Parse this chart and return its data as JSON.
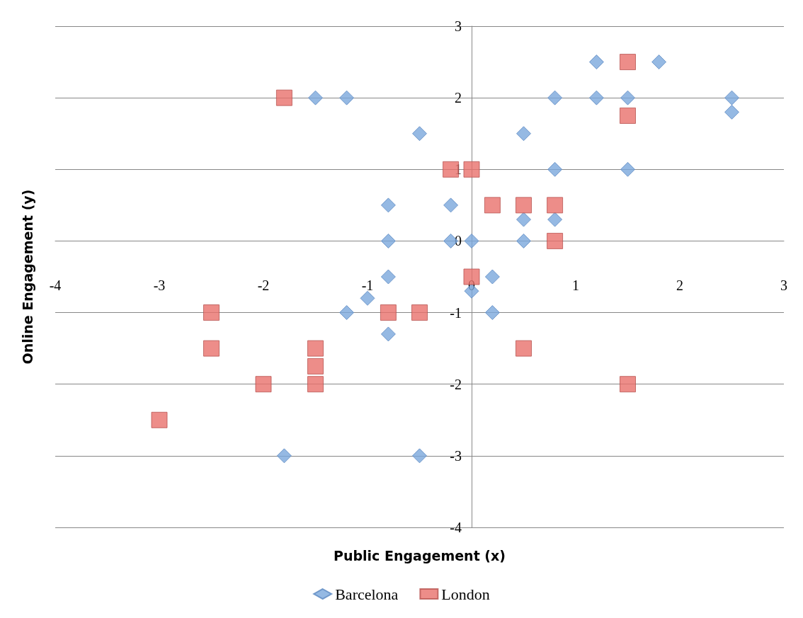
{
  "chart_data": {
    "type": "scatter",
    "xlabel": "Public Engagement (x)",
    "ylabel": "Online Engagement (y)",
    "xlim": [
      -4,
      3
    ],
    "xticks": [
      -4,
      -3,
      -2,
      -1,
      0,
      1,
      2,
      3
    ],
    "ylim": [
      -4,
      3
    ],
    "yticks": [
      -4,
      -3,
      -2,
      -1,
      0,
      1,
      2,
      3
    ],
    "grid": "y",
    "legend": "bottom",
    "series": [
      {
        "name": "Barcelona",
        "color": "#7ba7dc",
        "marker": "diamond",
        "x": [
          1.2,
          1.8,
          -1.5,
          -1.2,
          0.8,
          1.2,
          1.5,
          2.5,
          2.5,
          -0.5,
          0.5,
          0.8,
          1.5,
          -0.8,
          -0.2,
          0.5,
          0.8,
          -0.8,
          -0.2,
          0,
          0.5,
          -0.8,
          0.2,
          0,
          -1,
          -1.2,
          0.2,
          -0.8,
          -1.8,
          -0.5
        ],
        "values": [
          2.5,
          2.5,
          2,
          2,
          2,
          2,
          2,
          2,
          1.8,
          1.5,
          1.5,
          1,
          1,
          0.5,
          0.5,
          0.3,
          0.3,
          0,
          0,
          0,
          0,
          -0.5,
          -0.5,
          -0.7,
          -0.8,
          -1,
          -1,
          -1.3,
          -3,
          -3
        ]
      },
      {
        "name": "London",
        "color": "#e8716c",
        "marker": "square",
        "x": [
          -1.8,
          1.5,
          1.5,
          -0.2,
          0,
          0.2,
          0.5,
          0.8,
          0.8,
          0,
          -2.5,
          -0.8,
          -0.5,
          -2.5,
          -1.5,
          -1.5,
          -1.5,
          -2,
          0.5,
          1.5,
          -3
        ],
        "values": [
          2,
          2.5,
          1.75,
          1,
          1,
          0.5,
          0.5,
          0.5,
          0,
          -0.5,
          -1,
          -1,
          -1,
          -1.5,
          -1.5,
          -1.75,
          -2,
          -2,
          -1.5,
          -2,
          -2.5
        ]
      }
    ]
  }
}
